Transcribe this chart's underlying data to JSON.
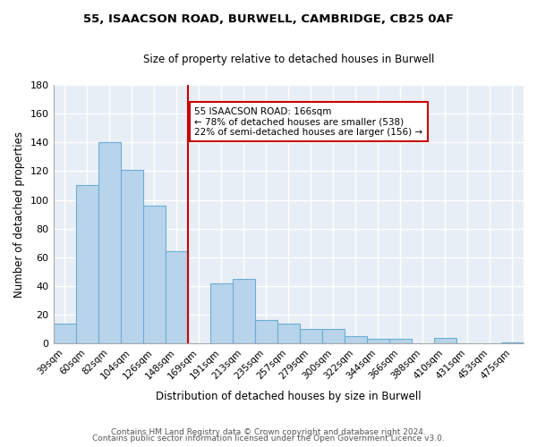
{
  "title1": "55, ISAACSON ROAD, BURWELL, CAMBRIDGE, CB25 0AF",
  "title2": "Size of property relative to detached houses in Burwell",
  "xlabel": "Distribution of detached houses by size in Burwell",
  "ylabel": "Number of detached properties",
  "bar_labels": [
    "39sqm",
    "60sqm",
    "82sqm",
    "104sqm",
    "126sqm",
    "148sqm",
    "169sqm",
    "191sqm",
    "213sqm",
    "235sqm",
    "257sqm",
    "279sqm",
    "300sqm",
    "322sqm",
    "344sqm",
    "366sqm",
    "388sqm",
    "410sqm",
    "431sqm",
    "453sqm",
    "475sqm"
  ],
  "bar_values": [
    14,
    110,
    140,
    121,
    96,
    64,
    0,
    42,
    45,
    16,
    14,
    10,
    10,
    5,
    3,
    3,
    0,
    4,
    0,
    0,
    1
  ],
  "bar_color": "#b8d4ea",
  "bar_edge_color": "#6aaed6",
  "vline_color": "#cc0000",
  "annotation_title": "55 ISAACSON ROAD: 166sqm",
  "annotation_line1": "← 78% of detached houses are smaller (538)",
  "annotation_line2": "22% of semi-detached houses are larger (156) →",
  "annotation_box_color": "white",
  "annotation_box_edge": "#cc0000",
  "ylim": [
    0,
    180
  ],
  "yticks": [
    0,
    20,
    40,
    60,
    80,
    100,
    120,
    140,
    160,
    180
  ],
  "footer1": "Contains HM Land Registry data © Crown copyright and database right 2024.",
  "footer2": "Contains public sector information licensed under the Open Government Licence v3.0.",
  "bg_color": "#e8eef5"
}
